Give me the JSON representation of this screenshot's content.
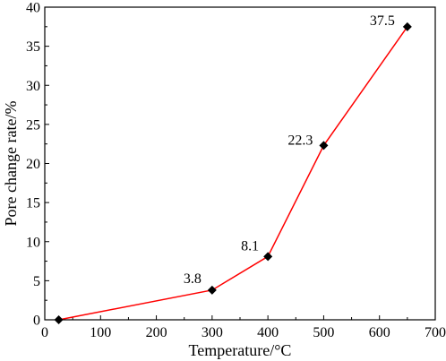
{
  "chart_data": {
    "type": "line",
    "title": "",
    "xlabel": "Temperature/°C",
    "ylabel": "Pore change rate/%",
    "xlim": [
      0,
      700
    ],
    "ylim": [
      0,
      40
    ],
    "xticks": [
      0,
      100,
      200,
      300,
      400,
      500,
      600,
      700
    ],
    "yticks": [
      0,
      5,
      10,
      15,
      20,
      25,
      30,
      35,
      40
    ],
    "grid": false,
    "legend": "none",
    "series": [
      {
        "color": "#ff0000",
        "marker": "diamond",
        "marker_color": "#000000",
        "points": [
          {
            "x": 25,
            "y": 0,
            "label": ""
          },
          {
            "x": 300,
            "y": 3.8,
            "label": "3.8"
          },
          {
            "x": 400,
            "y": 8.1,
            "label": "8.1"
          },
          {
            "x": 500,
            "y": 22.3,
            "label": "22.3"
          },
          {
            "x": 650,
            "y": 37.5,
            "label": "37.5"
          }
        ]
      }
    ]
  }
}
